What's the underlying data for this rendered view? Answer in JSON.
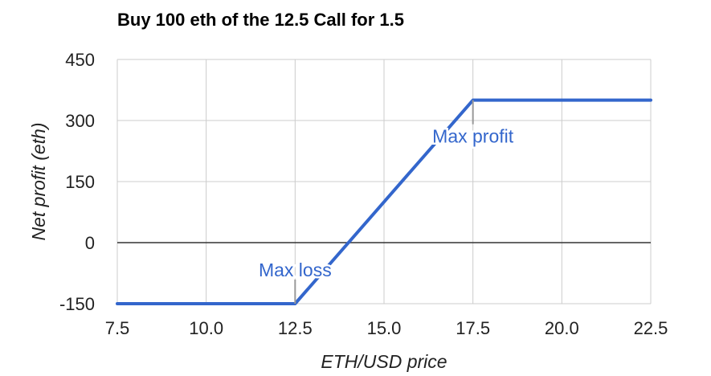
{
  "chart_data": {
    "type": "line",
    "title": "Buy 100 eth of the 12.5 Call for 1.5",
    "xlabel": "ETH/USD price",
    "ylabel": "Net profit (eth)",
    "xlim": [
      7.5,
      22.5
    ],
    "ylim": [
      -150,
      450
    ],
    "x_ticks": [
      "7.5",
      "10.0",
      "12.5",
      "15.0",
      "17.5",
      "20.0",
      "22.5"
    ],
    "y_ticks": [
      "450",
      "300",
      "150",
      "0",
      "-150"
    ],
    "grid": true,
    "series": [
      {
        "color": "#3366cc",
        "x": [
          7.5,
          12.5,
          17.5,
          22.5
        ],
        "y": [
          -150,
          -150,
          350,
          350
        ]
      }
    ],
    "annotations": [
      {
        "text": "Max loss",
        "x": 12.5,
        "y": -150,
        "color": "#3366cc"
      },
      {
        "text": "Max profit",
        "x": 17.5,
        "y": 350,
        "color": "#3366cc"
      }
    ]
  }
}
